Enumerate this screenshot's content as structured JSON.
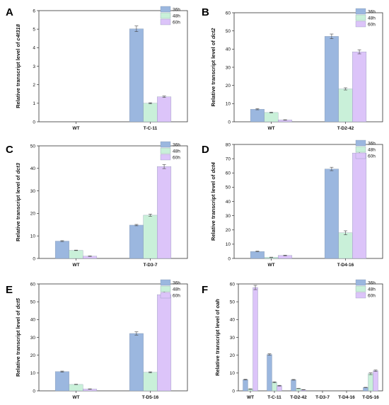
{
  "series_colors": {
    "36h": "#9bb7df",
    "48h": "#c9f0d9",
    "60h": "#dcc4f9"
  },
  "chart_data": [
    {
      "panel": "A",
      "type": "bar",
      "ylabel_prefix": "Relative transcript level of ",
      "ylabel_gene": "c4t318",
      "categories": [
        "WT",
        "T-C-11"
      ],
      "ylim": [
        0,
        6
      ],
      "yticks": [
        0,
        1,
        2,
        3,
        4,
        5,
        6
      ],
      "series": [
        {
          "name": "36h",
          "values": [
            0,
            5.02
          ],
          "errors": [
            0,
            0.15
          ]
        },
        {
          "name": "48h",
          "values": [
            0,
            1.0
          ],
          "errors": [
            0,
            0.03
          ]
        },
        {
          "name": "60h",
          "values": [
            0,
            1.35
          ],
          "errors": [
            0,
            0.04
          ]
        }
      ],
      "legend": "top-right",
      "grid": false
    },
    {
      "panel": "B",
      "type": "bar",
      "ylabel_prefix": "Relative transcript level of ",
      "ylabel_gene": "dct2",
      "categories": [
        "WT",
        "T-D2-42"
      ],
      "ylim": [
        0,
        60
      ],
      "yticks": [
        0,
        10,
        20,
        30,
        40,
        50,
        60
      ],
      "series": [
        {
          "name": "36h",
          "values": [
            6.9,
            47.0
          ],
          "errors": [
            0.3,
            1.3
          ]
        },
        {
          "name": "48h",
          "values": [
            5.1,
            18.1
          ],
          "errors": [
            0.2,
            0.6
          ]
        },
        {
          "name": "60h",
          "values": [
            1.0,
            38.5
          ],
          "errors": [
            0.1,
            1.1
          ]
        }
      ],
      "legend": "top-right",
      "grid": false
    },
    {
      "panel": "C",
      "type": "bar",
      "ylabel_prefix": "Relative transcript level of ",
      "ylabel_gene": "dct3",
      "categories": [
        "WT",
        "T-D3-7"
      ],
      "ylim": [
        0,
        50
      ],
      "yticks": [
        0,
        10,
        20,
        30,
        40,
        50
      ],
      "series": [
        {
          "name": "36h",
          "values": [
            7.7,
            14.8
          ],
          "errors": [
            0.2,
            0.3
          ]
        },
        {
          "name": "48h",
          "values": [
            3.6,
            19.2
          ],
          "errors": [
            0.1,
            0.5
          ]
        },
        {
          "name": "60h",
          "values": [
            1.0,
            40.8
          ],
          "errors": [
            0.1,
            0.9
          ]
        }
      ],
      "legend": "top-right",
      "grid": false
    },
    {
      "panel": "D",
      "type": "bar",
      "ylabel_prefix": "Relative transcript level of ",
      "ylabel_gene": "dct4",
      "categories": [
        "WT",
        "T-D4-16"
      ],
      "ylim": [
        0,
        80
      ],
      "yticks": [
        0,
        10,
        20,
        30,
        40,
        50,
        60,
        70,
        80
      ],
      "series": [
        {
          "name": "36h",
          "values": [
            4.9,
            62.8
          ],
          "errors": [
            0.2,
            1.2
          ]
        },
        {
          "name": "48h",
          "values": [
            0.8,
            18.0
          ],
          "errors": [
            0.1,
            1.4
          ]
        },
        {
          "name": "60h",
          "values": [
            2.1,
            74.0
          ],
          "errors": [
            0.2,
            1.3
          ]
        }
      ],
      "legend": "top-right",
      "grid": false
    },
    {
      "panel": "E",
      "type": "bar",
      "ylabel_prefix": "Relative transcript level of ",
      "ylabel_gene": "dct5",
      "categories": [
        "WT",
        "T-D5-16"
      ],
      "ylim": [
        0,
        60
      ],
      "yticks": [
        0,
        10,
        20,
        30,
        40,
        50,
        60
      ],
      "series": [
        {
          "name": "36h",
          "values": [
            10.8,
            32.2
          ],
          "errors": [
            0.3,
            0.9
          ]
        },
        {
          "name": "48h",
          "values": [
            3.6,
            10.4
          ],
          "errors": [
            0.1,
            0.3
          ]
        },
        {
          "name": "60h",
          "values": [
            1.0,
            54.0
          ],
          "errors": [
            0.1,
            1.7
          ]
        }
      ],
      "legend": "top-right",
      "grid": false
    },
    {
      "panel": "F",
      "type": "bar",
      "ylabel_prefix": "Relative transcript level of ",
      "ylabel_gene": "oah",
      "categories": [
        "WT",
        "T-C-11",
        "T-D2-42",
        "T-D3-7",
        "T-D4-16",
        "T-D5-16"
      ],
      "ylim": [
        0,
        60
      ],
      "yticks": [
        0,
        10,
        20,
        30,
        40,
        50,
        60
      ],
      "series": [
        {
          "name": "36h",
          "values": [
            6.3,
            20.4,
            6.2,
            0,
            0,
            1.9
          ],
          "errors": [
            0.2,
            0.4,
            0.2,
            0,
            0,
            0.1
          ]
        },
        {
          "name": "48h",
          "values": [
            1.0,
            4.8,
            1.3,
            0,
            0,
            9.6
          ],
          "errors": [
            0.1,
            0.3,
            0.1,
            0,
            0,
            0.5
          ]
        },
        {
          "name": "60h",
          "values": [
            58.0,
            2.9,
            0.6,
            0,
            0,
            11.3
          ],
          "errors": [
            1.2,
            0.2,
            0.1,
            0,
            0,
            0.4
          ]
        }
      ],
      "legend": "top-right",
      "grid": false
    }
  ]
}
